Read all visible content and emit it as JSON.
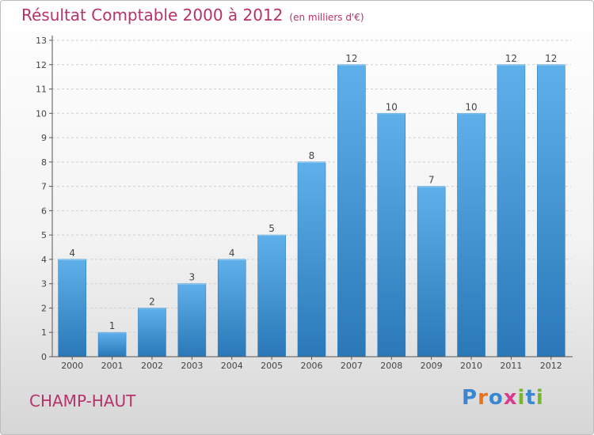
{
  "page": {
    "title": "Résultat Comptable 2000 à 2012",
    "subtitle": "(en milliers d'€)",
    "location": "CHAMP-HAUT",
    "logo": {
      "text": "Proxiti",
      "letters": [
        {
          "char": "P",
          "color": "#3a86d0"
        },
        {
          "char": "r",
          "color": "#e8731b"
        },
        {
          "char": "o",
          "color": "#3a86d0"
        },
        {
          "char": "x",
          "color": "#d93a8e"
        },
        {
          "char": "i",
          "color": "#79b62e"
        },
        {
          "char": "t",
          "color": "#3a86d0"
        },
        {
          "char": "i",
          "color": "#79b62e"
        }
      ]
    }
  },
  "colors": {
    "title": "#b5336a",
    "bar_top": "#5fb0ea",
    "bar_bottom": "#2a78b8",
    "grid": "#cfcfcf",
    "axis": "#555555"
  },
  "chart_data": {
    "type": "bar",
    "title": "Résultat Comptable 2000 à 2012",
    "subtitle": "(en milliers d'€)",
    "categories": [
      "2000",
      "2001",
      "2002",
      "2003",
      "2004",
      "2005",
      "2006",
      "2007",
      "2008",
      "2009",
      "2010",
      "2011",
      "2012"
    ],
    "values": [
      4,
      1,
      2,
      3,
      4,
      5,
      8,
      12,
      10,
      7,
      10,
      12,
      12
    ],
    "yticks": [
      0,
      1,
      2,
      3,
      4,
      5,
      6,
      7,
      8,
      9,
      10,
      11,
      12,
      13
    ],
    "ylim": [
      0,
      13
    ],
    "grid": "horizontal dashed",
    "data_labels": true
  }
}
